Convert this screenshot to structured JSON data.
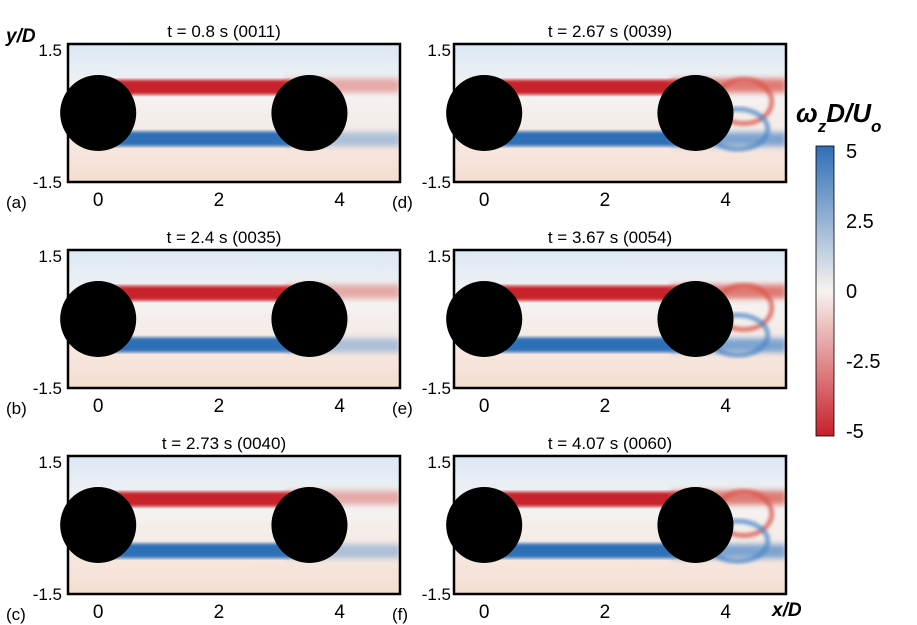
{
  "figure": {
    "y_axis_label": "y/D",
    "x_axis_label": "x/D",
    "colorbar": {
      "label": "ω_zD/U_o",
      "ticks": [
        "5",
        "2.5",
        "0",
        "-2.5",
        "-5"
      ],
      "range": [
        -5,
        5
      ],
      "colors": {
        "negative": "#c8202a",
        "zero": "#f7f3ef",
        "positive": "#2e6fb8"
      }
    }
  },
  "chart_data": [
    {
      "type": "heatmap",
      "panel_label": "(a)",
      "title": "t = 0.8 s (0011)",
      "x_ticks": [
        "0",
        "2",
        "4"
      ],
      "y_ticks": [
        "1.5",
        "-1.5"
      ],
      "xlim": [
        -0.5,
        5
      ],
      "ylim": [
        -1.5,
        1.5
      ]
    },
    {
      "type": "heatmap",
      "panel_label": "(d)",
      "title": "t = 2.67 s (0039)",
      "x_ticks": [
        "0",
        "2",
        "4"
      ],
      "y_ticks": [
        "1.5",
        "-1.5"
      ],
      "xlim": [
        -0.5,
        5
      ],
      "ylim": [
        -1.5,
        1.5
      ]
    },
    {
      "type": "heatmap",
      "panel_label": "(b)",
      "title": "t = 2.4 s (0035)",
      "x_ticks": [
        "0",
        "2",
        "4"
      ],
      "y_ticks": [
        "1.5",
        "-1.5"
      ],
      "xlim": [
        -0.5,
        5
      ],
      "ylim": [
        -1.5,
        1.5
      ]
    },
    {
      "type": "heatmap",
      "panel_label": "(e)",
      "title": "t = 3.67 s (0054)",
      "x_ticks": [
        "0",
        "2",
        "4"
      ],
      "y_ticks": [
        "1.5",
        "-1.5"
      ],
      "xlim": [
        -0.5,
        5
      ],
      "ylim": [
        -1.5,
        1.5
      ]
    },
    {
      "type": "heatmap",
      "panel_label": "(c)",
      "title": "t = 2.73 s (0040)",
      "x_ticks": [
        "0",
        "2",
        "4"
      ],
      "y_ticks": [
        "1.5",
        "-1.5"
      ],
      "xlim": [
        -0.5,
        5
      ],
      "ylim": [
        -1.5,
        1.5
      ]
    },
    {
      "type": "heatmap",
      "panel_label": "(f)",
      "title": "t = 4.07 s (0060)",
      "x_ticks": [
        "0",
        "2",
        "4"
      ],
      "y_ticks": [
        "1.5",
        "-1.5"
      ],
      "xlim": [
        -0.5,
        5
      ],
      "ylim": [
        -1.5,
        1.5
      ]
    }
  ]
}
